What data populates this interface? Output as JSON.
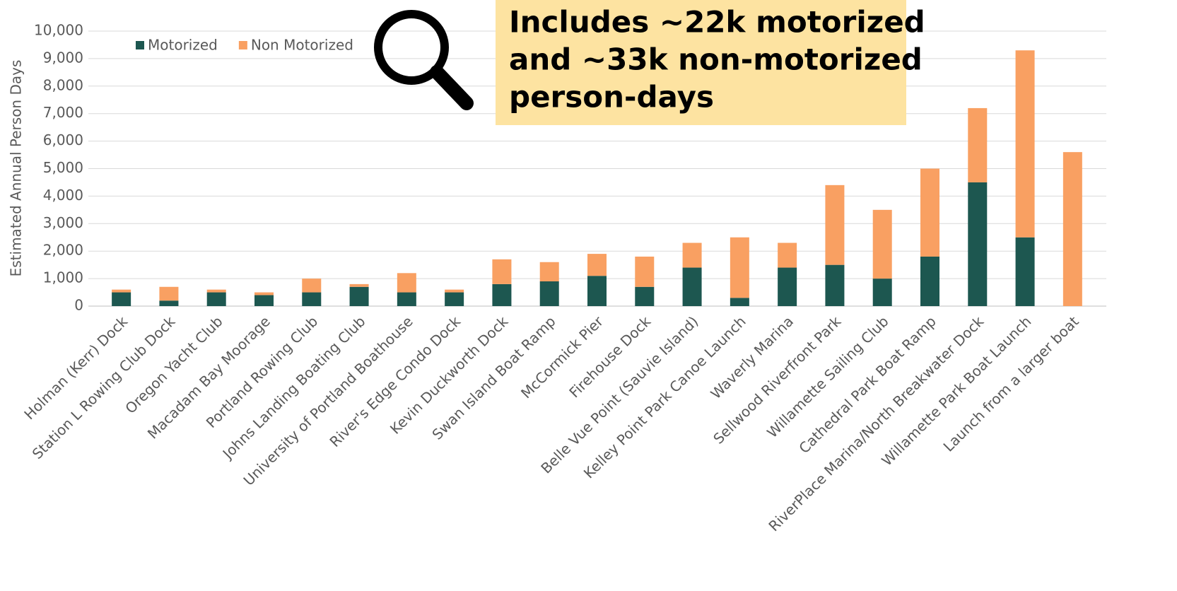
{
  "chart_data": {
    "type": "stacked_bar",
    "y_axis_label": "Estimated Annual Person Days",
    "annotation": [
      "Includes ~22k motorized",
      "and ~33k non-motorized",
      "person-days"
    ],
    "categories": [
      "Holman (Kerr) Dock",
      "Station L Rowing Club Dock",
      "Oregon Yacht Club",
      "Macadam Bay Moorage",
      "Portland Rowing Club",
      "Johns Landing Boating Club",
      "University of Portland Boathouse",
      "River's Edge Condo Dock",
      "Kevin Duckworth Dock",
      "Swan Island Boat Ramp",
      "McCormick Pier",
      "Firehouse Dock",
      "Belle Vue Point (Sauvie Island)",
      "Kelley Point Park Canoe Launch",
      "Waverly Marina",
      "Sellwood Riverfront Park",
      "Willamette Sailing Club",
      "Cathedral Park Boat Ramp",
      "RiverPlace Marina/North Breakwater Dock",
      "Willamette Park Boat Launch",
      "Launch from a larger boat"
    ],
    "series": [
      {
        "name": "Motorized",
        "color": "#1d5750",
        "values": [
          500,
          200,
          500,
          400,
          500,
          700,
          500,
          500,
          800,
          900,
          1100,
          700,
          1400,
          300,
          1400,
          1500,
          1000,
          1800,
          4500,
          2500,
          0
        ]
      },
      {
        "name": "Non Motorized",
        "color": "#f9a062",
        "values": [
          100,
          500,
          100,
          100,
          500,
          100,
          700,
          100,
          900,
          700,
          800,
          1100,
          900,
          2200,
          900,
          2900,
          2500,
          3200,
          2700,
          6800,
          5600
        ]
      }
    ],
    "ylim": [
      0,
      10000
    ],
    "yticks": [
      0,
      {
        "value": 1000,
        "label": "1,000"
      },
      {
        "value": 2000,
        "label": "2,000"
      },
      {
        "value": 3000,
        "label": "3,000"
      },
      {
        "value": 4000,
        "label": "4,000"
      },
      {
        "value": 5000,
        "label": "5,000"
      },
      {
        "value": 6000,
        "label": "6,000"
      },
      {
        "value": 7000,
        "label": "7,000"
      },
      {
        "value": 8000,
        "label": "8,000"
      },
      {
        "value": 9000,
        "label": "9,000"
      },
      {
        "value": 10000,
        "label": "10,000"
      }
    ],
    "grid": true
  }
}
